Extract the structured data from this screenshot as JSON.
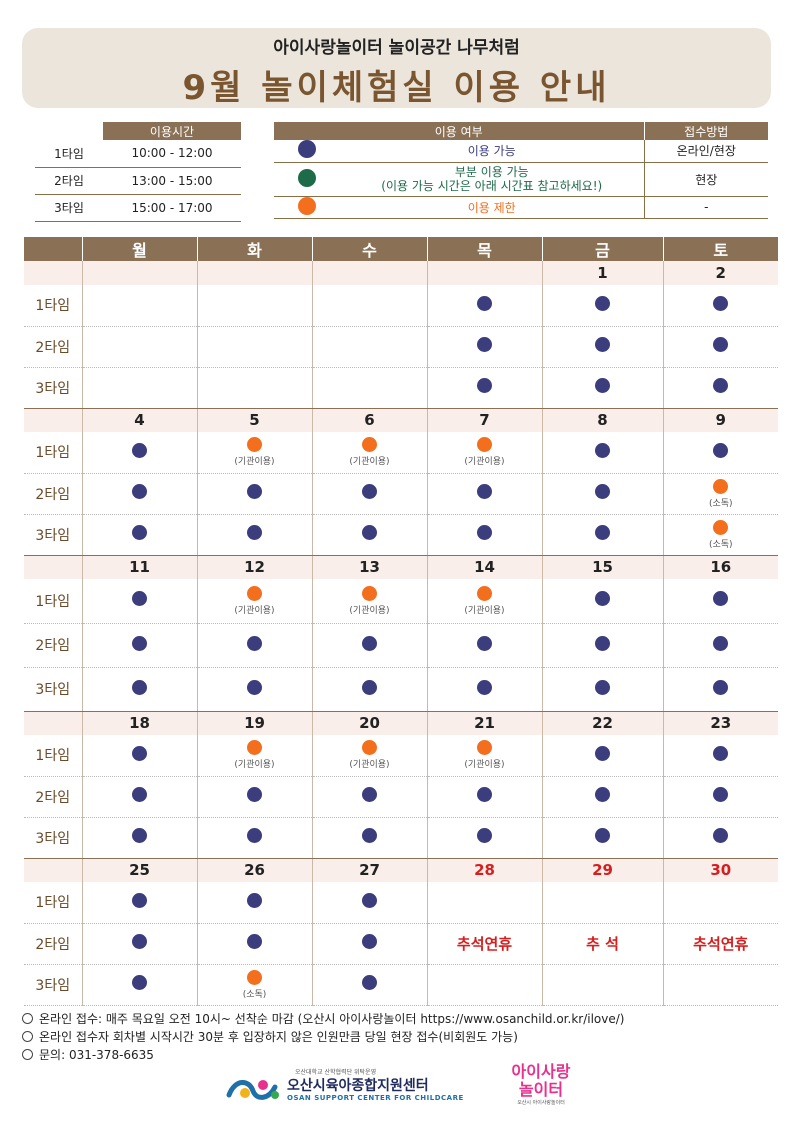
{
  "header": {
    "subtitle": "아이사랑놀이터 놀이공간 나무처럼",
    "title": "9월 놀이체험실 이용 안내"
  },
  "time_table": {
    "header": "이용시간",
    "rows": [
      {
        "type": "1타임",
        "time": "10:00 - 12:00"
      },
      {
        "type": "2타임",
        "time": "13:00 - 15:00"
      },
      {
        "type": "3타임",
        "time": "15:00 - 17:00"
      }
    ]
  },
  "legend": {
    "header_status": "이용 여부",
    "header_method": "접수방법",
    "available": "이용 가능",
    "available_method": "온라인/현장",
    "partial": "부분 이용 가능",
    "partial_note": "(이용 가능 시간은 아래 시간표 참고하세요!)",
    "partial_method": "현장",
    "restricted": "이용 제한",
    "restricted_method": "-",
    "colors": {
      "available": "#3b3d7d",
      "partial": "#1e6b49",
      "restricted": "#f36f1e"
    }
  },
  "calendar": {
    "weekdays": [
      "월",
      "화",
      "수",
      "목",
      "금",
      "토"
    ],
    "slot_labels": [
      "1타임",
      "2타임",
      "3타임"
    ],
    "weeks": [
      {
        "dates": [
          "",
          "",
          "",
          "",
          "1",
          "2"
        ]
      },
      {
        "dates": [
          "4",
          "5",
          "6",
          "7",
          "8",
          "9"
        ]
      },
      {
        "dates": [
          "11",
          "12",
          "13",
          "14",
          "15",
          "16"
        ]
      },
      {
        "dates": [
          "18",
          "19",
          "20",
          "21",
          "22",
          "23"
        ]
      },
      {
        "dates": [
          "25",
          "26",
          "27",
          "28",
          "29",
          "30"
        ]
      }
    ],
    "notes": {
      "institution": "(기관이용)",
      "disinfect": "(소독)"
    },
    "holidays": {
      "chuseok_break": "추석연휴",
      "chuseok": "추 석"
    }
  },
  "notices": [
    "온라인 접수: 매주 목요일 오전 10시~ 선착순 마감 (오산시 아이사랑놀이터 https://www.osanchild.or.kr/ilove/)",
    "온라인 접수자 회차별 시작시간 30분 후 입장하지 않은 인원만큼 당일 현장 접수(비회원도 가능)",
    "문의: 031-378-6635"
  ],
  "footer": {
    "org_small": "오산대학교 산학협력단 위탁운영",
    "org_name": "오산시육아종합지원센터",
    "org_en": "OSAN SUPPORT CENTER FOR CHILDCARE",
    "brand_line1": "아이사랑",
    "brand_line2": "놀이터",
    "brand_small": "오산시 아이사랑놀이터"
  }
}
